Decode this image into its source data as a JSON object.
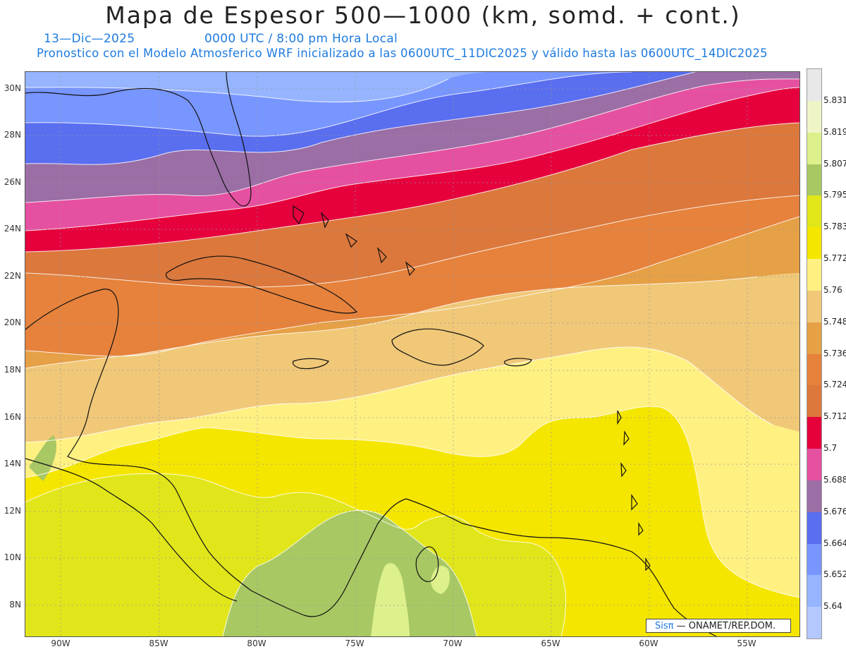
{
  "title": "Mapa de Espesor 500—1000 (km, somd. + cont.)",
  "date_label": "13—Dic—2025",
  "time_label": "0000 UTC / 8:00 pm Hora Local",
  "info_label": "Pronostico con el Modelo Atmosferico WRF inicializado a las 0600UTC_11DIC2025 y válido hasta las  0600UTC_14DIC2025",
  "credit": {
    "brand": "Sisπ",
    "text": "— ONAMET/REP.DOM."
  },
  "lat_labels": [
    "30N",
    "28N",
    "26N",
    "24N",
    "22N",
    "20N",
    "18N",
    "16N",
    "14N",
    "12N",
    "10N",
    "8N"
  ],
  "lon_labels": [
    "90W",
    "85W",
    "80W",
    "75W",
    "70W",
    "65W",
    "60W",
    "55W"
  ],
  "colorbar": {
    "labels": [
      "5.831",
      "5.819",
      "5.807",
      "5.795",
      "5.783",
      "5.772",
      "5.76",
      "5.748",
      "5.736",
      "5.724",
      "5.712",
      "5.7",
      "5.688",
      "5.676",
      "5.664",
      "5.652",
      "5.64"
    ],
    "colors": [
      "#e8e8e8",
      "#f0f5c8",
      "#dcf08c",
      "#a8c864",
      "#e0e61a",
      "#f5e600",
      "#fff082",
      "#f0c878",
      "#e6a046",
      "#e6823c",
      "#dc783c",
      "#e6003c",
      "#e650a0",
      "#9b6ea5",
      "#5a6ef0",
      "#7896ff",
      "#96b4ff",
      "#b4c8ff"
    ]
  }
}
